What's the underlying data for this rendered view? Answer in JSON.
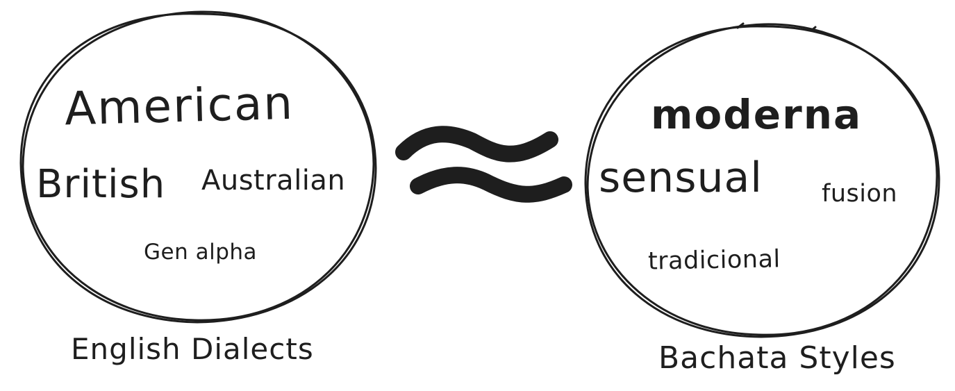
{
  "diagram": {
    "stroke_color": "#1e1e1e",
    "symbol_icon": "approximately-equal-icon",
    "left_set": {
      "caption": "English Dialects",
      "items": [
        "American",
        "British",
        "Australian",
        "Gen alpha"
      ]
    },
    "right_set": {
      "caption": "Bachata Styles",
      "items": [
        "moderna",
        "sensual",
        "fusion",
        "tradicional"
      ]
    }
  }
}
